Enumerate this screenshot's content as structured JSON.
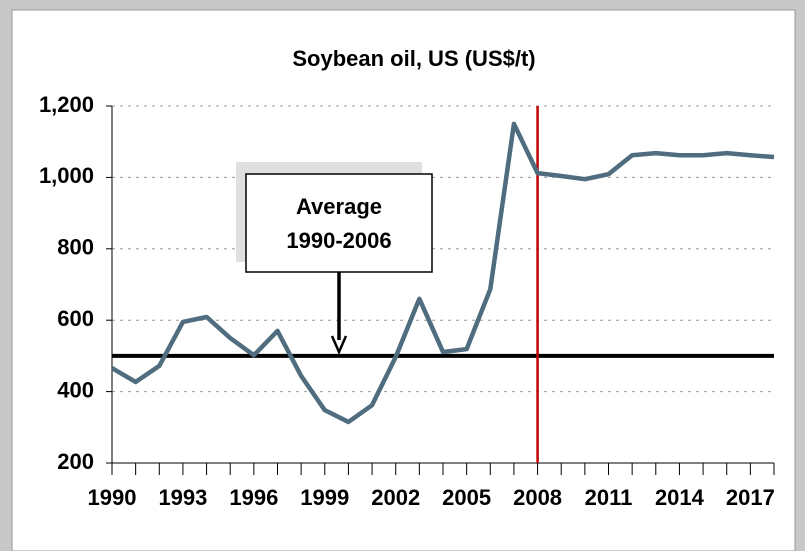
{
  "chart_data": {
    "type": "line",
    "title": "Soybean oil, US (US$/t)",
    "x": [
      1990,
      1991,
      1992,
      1993,
      1994,
      1995,
      1996,
      1997,
      1998,
      1999,
      2000,
      2001,
      2002,
      2003,
      2004,
      2005,
      2006,
      2007,
      2008,
      2009,
      2010,
      2011,
      2012,
      2013,
      2014,
      2015,
      2016,
      2017,
      2018
    ],
    "series": [
      {
        "color": "#4f6d7e",
        "values": [
          466,
          427,
          472,
          595,
          609,
          550,
          502,
          570,
          444,
          348,
          315,
          362,
          497,
          660,
          511,
          519,
          687,
          1150,
          1012,
          1004,
          995,
          1009,
          1062,
          1068,
          1062,
          1062,
          1068,
          1062,
          1057
        ]
      }
    ],
    "xlim": [
      1990,
      2018
    ],
    "xticks": [
      1990,
      1993,
      1996,
      1999,
      2002,
      2005,
      2008,
      2011,
      2014,
      2017
    ],
    "ylim": [
      200,
      1200
    ],
    "yticks": [
      200,
      400,
      600,
      800,
      {
        "value": 1000,
        "label": "1,000"
      },
      {
        "value": 1200,
        "label": "1,200"
      }
    ],
    "grid": true,
    "average": {
      "value": 500,
      "color": "#000000"
    },
    "marker_line": {
      "x": 2008,
      "color": "#c00000"
    },
    "annotation": [
      "Average",
      "1990-2006"
    ]
  }
}
